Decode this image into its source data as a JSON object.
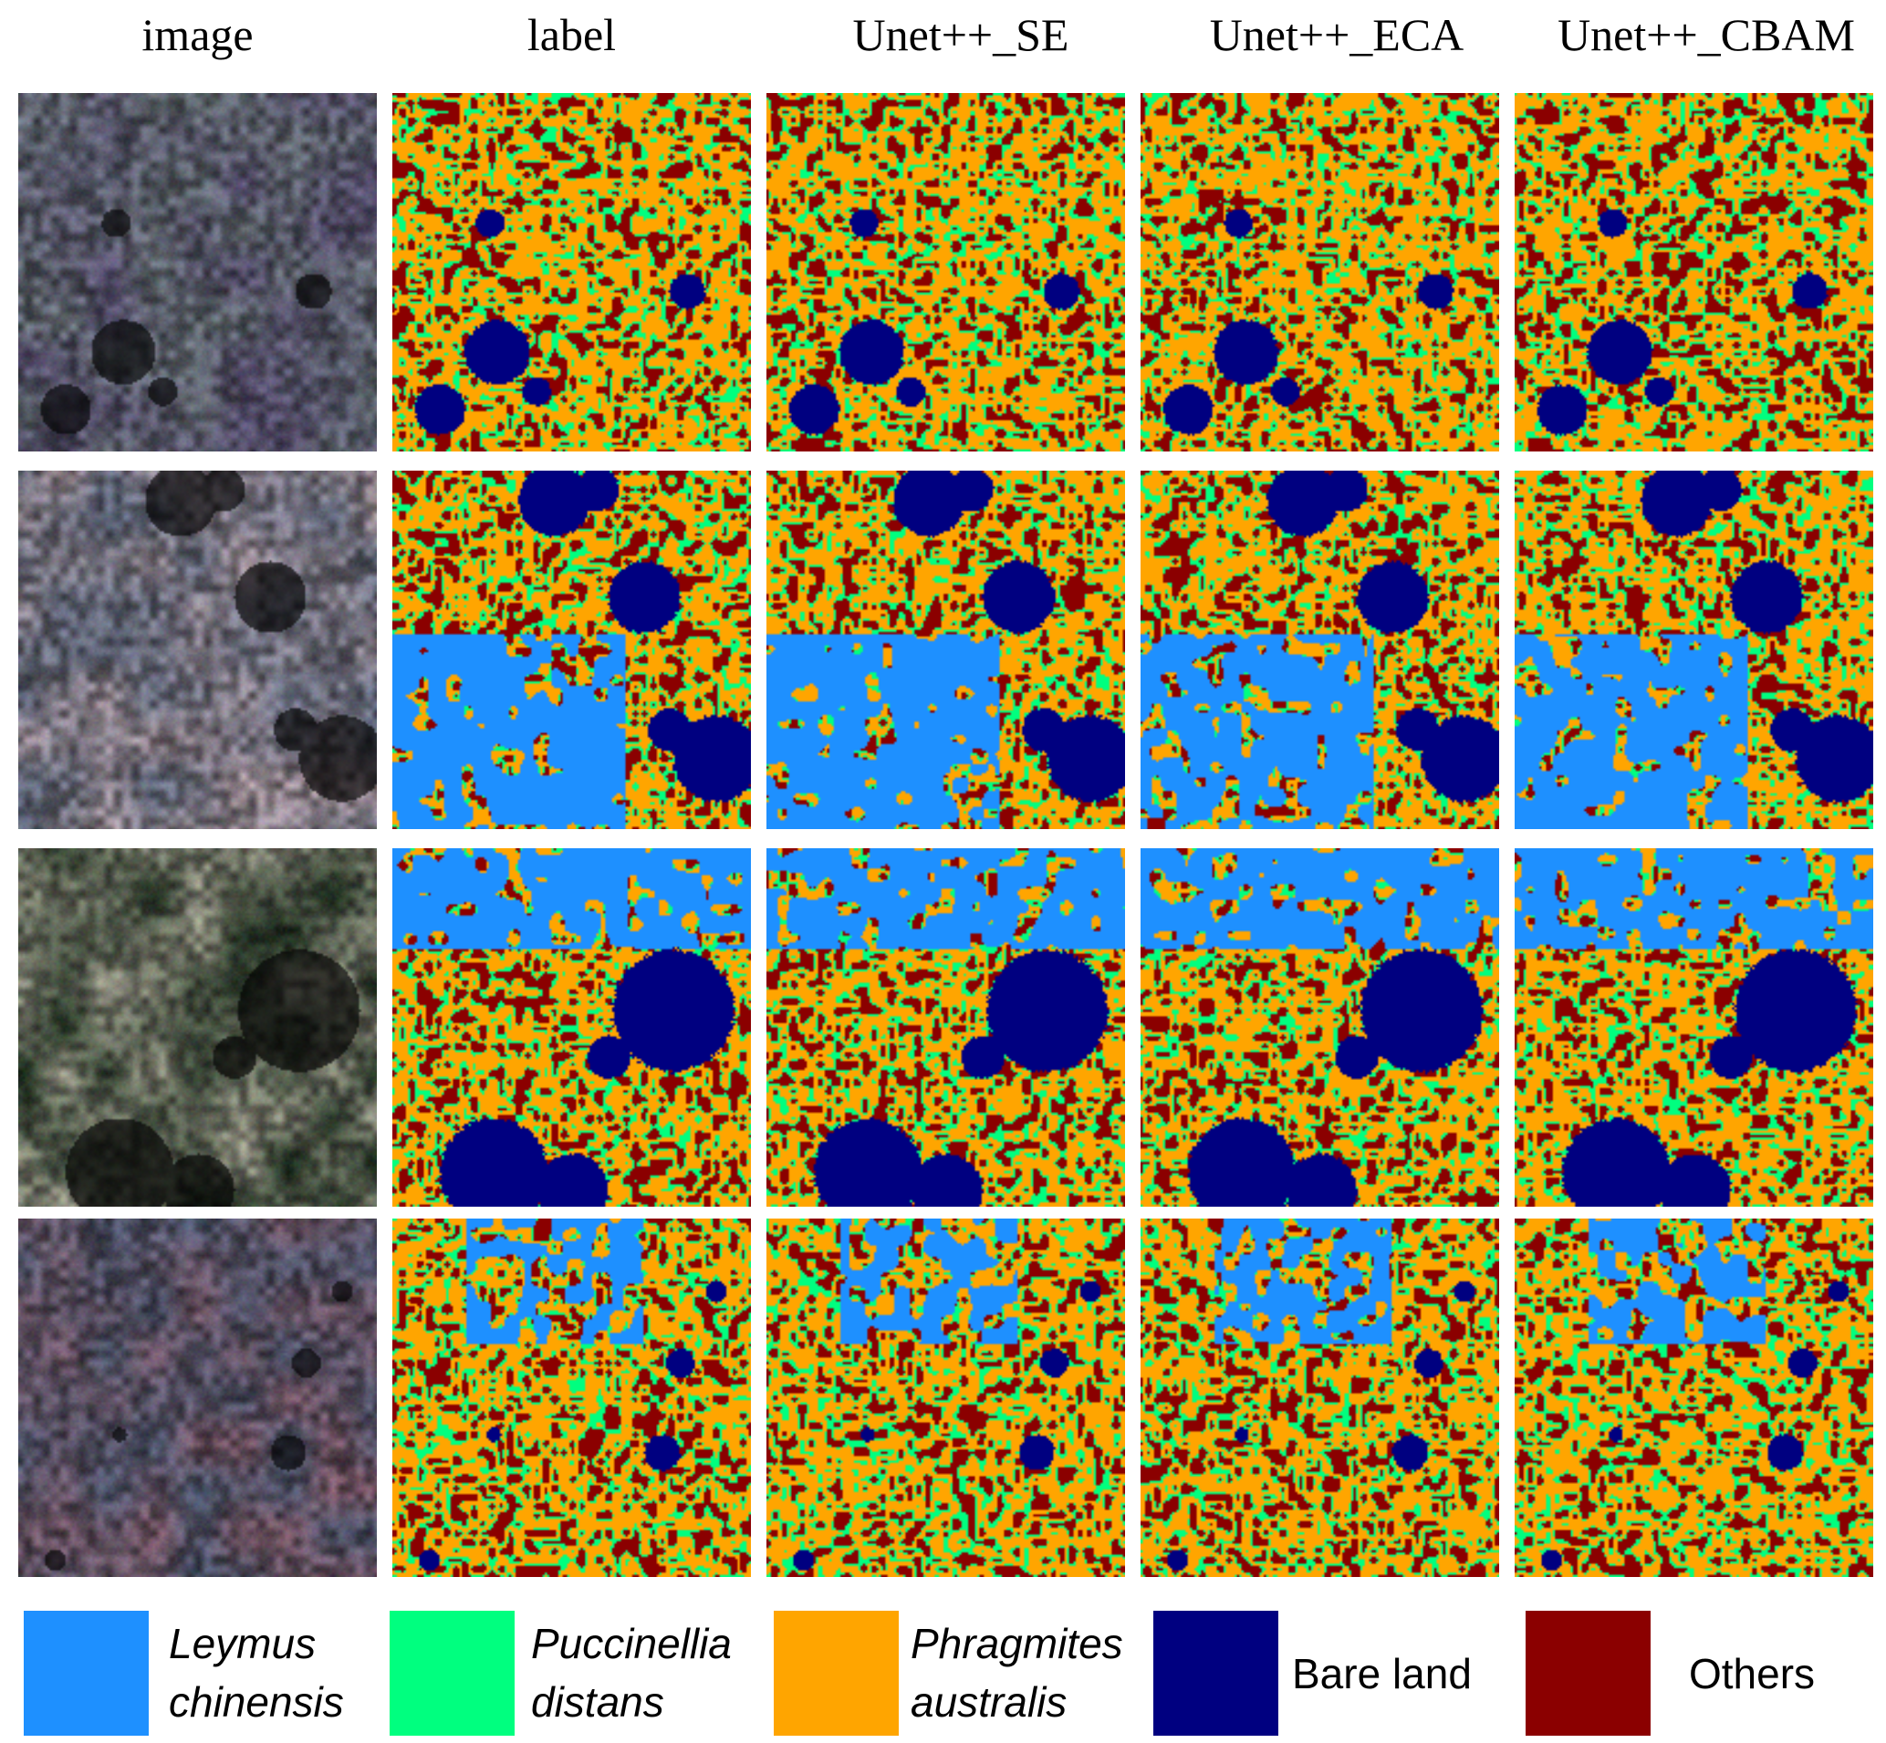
{
  "columns": {
    "image": "image",
    "label": "label",
    "se": "Unet++_SE",
    "eca": "Unet++_ECA",
    "cbam": "Unet++_CBAM"
  },
  "rows": [
    {
      "id": "sample-1",
      "photo_tint": "mixed-grey-purple",
      "features": "small bare-land patches in centre and lower-left"
    },
    {
      "id": "sample-2",
      "photo_tint": "blue-grey with pink lower-left",
      "features": "bare land top-centre, right and lower-right; Leymus in lower-left"
    },
    {
      "id": "sample-3",
      "photo_tint": "light with dark green centre",
      "features": "large bare land right-centre and bottom-left"
    },
    {
      "id": "sample-4",
      "photo_tint": "purple top, blue-grey bottom",
      "features": "scattered small bare-land spots"
    }
  ],
  "legend": [
    {
      "line1": "Leymus",
      "line2": "chinensis",
      "italic": true,
      "color": "#1E90FF"
    },
    {
      "line1": "Puccinellia",
      "line2": "distans",
      "italic": true,
      "color": "#00FF7F"
    },
    {
      "line1": "Phragmites",
      "line2": "australis",
      "italic": true,
      "color": "#FFA500"
    },
    {
      "line1": "Bare land",
      "line2": "",
      "italic": false,
      "color": "#000080"
    },
    {
      "line1": "Others",
      "line2": "",
      "italic": false,
      "color": "#8B0000"
    }
  ]
}
